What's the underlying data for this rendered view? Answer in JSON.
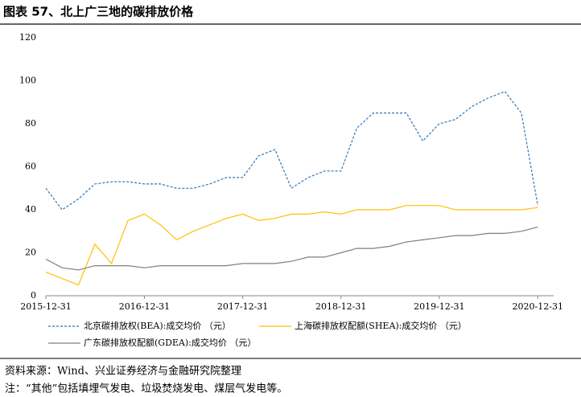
{
  "chart_data": {
    "type": "line",
    "title": "图表 57、北上广三地的碳排放价格",
    "x": [
      "2015-12-31",
      "2016-02-29",
      "2016-04-30",
      "2016-06-30",
      "2016-08-31",
      "2016-10-31",
      "2016-12-31",
      "2017-02-28",
      "2017-04-30",
      "2017-06-30",
      "2017-08-31",
      "2017-10-31",
      "2017-12-31",
      "2018-02-28",
      "2018-04-30",
      "2018-06-30",
      "2018-08-31",
      "2018-10-31",
      "2018-12-31",
      "2019-02-28",
      "2019-04-30",
      "2019-06-30",
      "2019-08-31",
      "2019-10-31",
      "2019-12-31",
      "2020-02-29",
      "2020-04-30",
      "2020-06-30",
      "2020-08-31",
      "2020-10-31",
      "2020-12-31"
    ],
    "series": [
      {
        "name": "北京碳排放权(BEA):成交均价 （元）",
        "color": "#2e75b6",
        "dash": true,
        "values": [
          50,
          40,
          45,
          52,
          53,
          53,
          52,
          52,
          50,
          50,
          52,
          55,
          55,
          65,
          68,
          50,
          55,
          58,
          58,
          78,
          85,
          85,
          85,
          72,
          80,
          82,
          88,
          92,
          95,
          85,
          42
        ]
      },
      {
        "name": "上海碳排放权配额(SHEA):成交均价 （元）",
        "color": "#ffc000",
        "dash": false,
        "values": [
          11,
          8,
          5,
          24,
          15,
          35,
          38,
          33,
          26,
          30,
          33,
          36,
          38,
          35,
          36,
          38,
          38,
          39,
          38,
          40,
          40,
          40,
          42,
          42,
          42,
          40,
          40,
          40,
          40,
          40,
          41
        ]
      },
      {
        "name": "广东碳排放权配额(GDEA):成交均价 （元）",
        "color": "#7f7f7f",
        "dash": false,
        "values": [
          17,
          13,
          12,
          14,
          14,
          14,
          13,
          14,
          14,
          14,
          14,
          14,
          15,
          15,
          15,
          16,
          18,
          18,
          20,
          22,
          22,
          23,
          25,
          26,
          27,
          28,
          28,
          29,
          29,
          30,
          32
        ]
      }
    ],
    "xlim": [
      "2015-12-31",
      "2021-02-28"
    ],
    "xticks": [
      "2015-12-31",
      "2016-12-31",
      "2017-12-31",
      "2018-12-31",
      "2019-12-31",
      "2020-12-31"
    ],
    "ylim": [
      0,
      120
    ],
    "yticks": [
      0,
      20,
      40,
      60,
      80,
      100,
      120
    ],
    "grid": false
  },
  "footer": {
    "source": "资料来源：Wind、兴业证券经济与金融研究院整理",
    "note": "注：“其他”包括填埋气发电、垃圾焚烧发电、煤层气发电等。"
  }
}
